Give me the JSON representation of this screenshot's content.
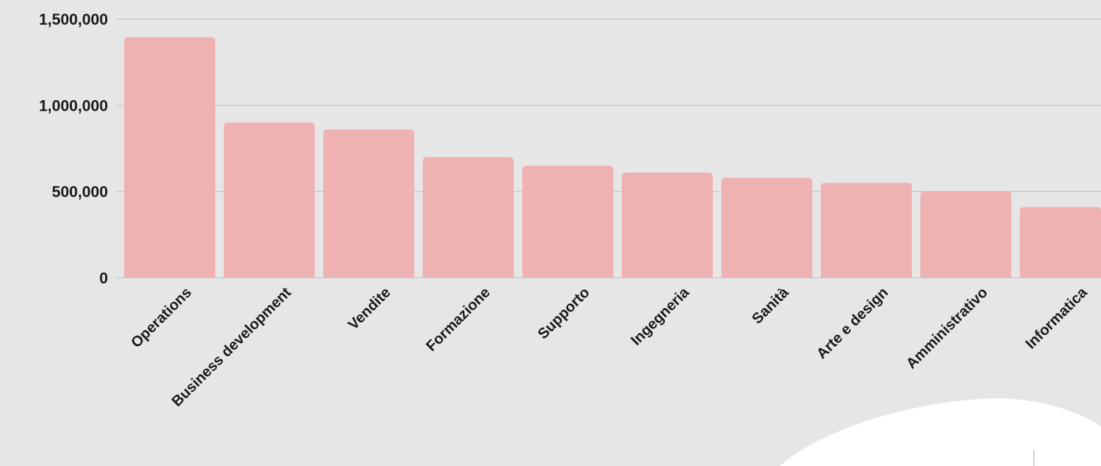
{
  "chart_data": {
    "type": "bar",
    "title": "",
    "xlabel": "",
    "ylabel": "",
    "categories": [
      "Operations",
      "Business development",
      "Vendite",
      "Formazione",
      "Supporto",
      "Ingegneria",
      "Sanità",
      "Arte e design",
      "Amministrativo",
      "Informatica"
    ],
    "values": [
      1395000,
      900000,
      860000,
      700000,
      650000,
      610000,
      580000,
      550000,
      500000,
      410000
    ],
    "ylim": [
      0,
      1500000
    ],
    "yticks": [
      0,
      500000,
      1000000,
      1500000
    ],
    "ytick_labels": [
      "0",
      "500,000",
      "1,000,000",
      "1,500,000"
    ],
    "grid": true,
    "legend": "none",
    "colors": {
      "background": "#e6e6e6",
      "bar": "#efb2b2",
      "grid": "#bdbdbd",
      "text": "#1a1a1a",
      "overlay": "#ffffff"
    }
  }
}
